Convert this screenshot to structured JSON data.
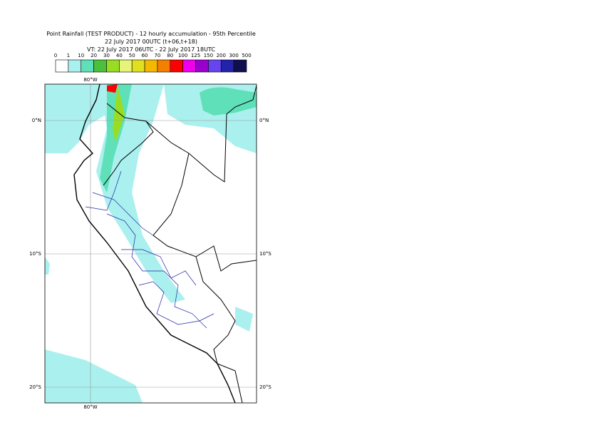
{
  "header": {
    "title": "Point Rainfall (TEST PRODUCT) - 12 hourly accumulation - 95th Percentile",
    "line2": "22 July 2017 00UTC (t+06,t+18)",
    "line3": "VT: 22 July 2017 06UTC - 22 July 2017 18UTC"
  },
  "legend": {
    "labels": [
      "0",
      "1",
      "10",
      "20",
      "30",
      "40",
      "50",
      "60",
      "70",
      "80",
      "100",
      "125",
      "150",
      "200",
      "300",
      "500"
    ],
    "colors": [
      "#ffffff",
      "#aaf0ee",
      "#5fe0b8",
      "#4cbf3c",
      "#99dd22",
      "#e6f57a",
      "#e0e020",
      "#f5b800",
      "#f57f00",
      "#ff0000",
      "#ee00ee",
      "#9900cc",
      "#6644ee",
      "#2222aa",
      "#101050"
    ]
  },
  "map": {
    "lon_label": "80°W",
    "lat_labels": [
      "0°N",
      "10°S",
      "20°S"
    ]
  }
}
